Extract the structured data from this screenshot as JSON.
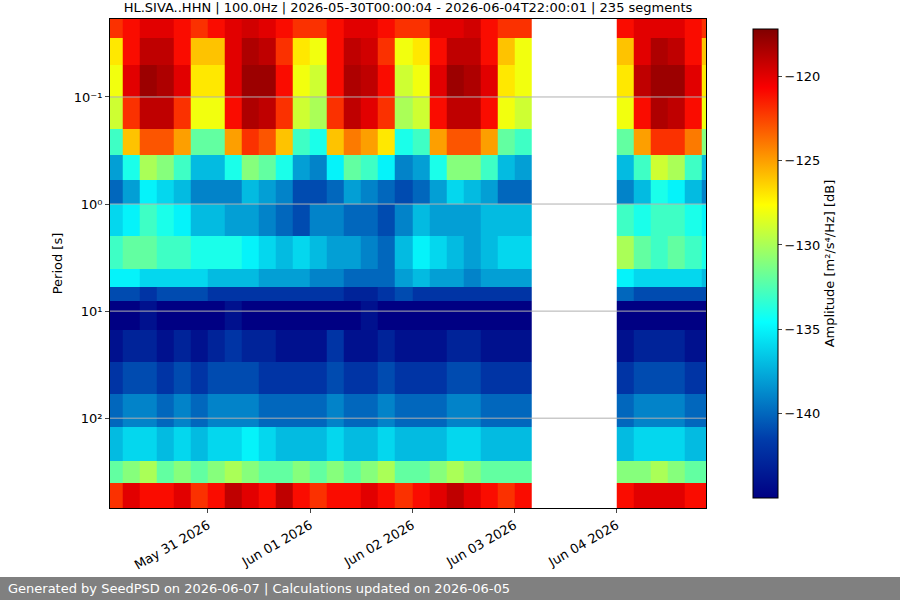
{
  "chart_data": {
    "type": "heatmap",
    "title": "HL.SIVA..HHN | 100.0Hz | 2026-05-30T00:00:04 - 2026-06-04T22:00:01 | 235 segments",
    "footer": "Generated by SeedPSD on 2026-06-07 | Calculations updated on 2026-06-05",
    "ylabel": "Period [s]",
    "colorbar_label": "Amplitude [m²/s⁴/Hz] [dB]",
    "log": "y",
    "grid": true,
    "xlim": [
      "2026-05-30 01:00",
      "2026-06-04 21:00"
    ],
    "xticks": [
      {
        "value": "2026-05-31",
        "label": "May 31 2026"
      },
      {
        "value": "2026-06-01",
        "label": "Jun 01 2026"
      },
      {
        "value": "2026-06-02",
        "label": "Jun 02 2026"
      },
      {
        "value": "2026-06-03",
        "label": "Jun 03 2026"
      },
      {
        "value": "2026-06-04",
        "label": "Jun 04 2026"
      }
    ],
    "ylim": [
      0.0187,
      690
    ],
    "yticks": [
      {
        "value": 0.1,
        "label": "10⁻¹"
      },
      {
        "value": 1,
        "label": "10⁰"
      },
      {
        "value": 10,
        "label": "10¹"
      },
      {
        "value": 100,
        "label": "10²"
      }
    ],
    "zlim": [
      -145,
      -117.2
    ],
    "zticks": [
      -140,
      -135,
      -130,
      -125,
      -120
    ],
    "x_edges": [
      "2026-05-30 00:00",
      "2026-05-30 04:00",
      "2026-05-30 08:00",
      "2026-05-30 12:00",
      "2026-05-30 16:00",
      "2026-05-30 20:00",
      "2026-05-31 00:00",
      "2026-05-31 04:00",
      "2026-05-31 08:00",
      "2026-05-31 12:00",
      "2026-05-31 16:00",
      "2026-05-31 20:00",
      "2026-06-01 00:00",
      "2026-06-01 04:00",
      "2026-06-01 08:00",
      "2026-06-01 12:00",
      "2026-06-01 16:00",
      "2026-06-01 20:00",
      "2026-06-02 00:00",
      "2026-06-02 04:00",
      "2026-06-02 08:00",
      "2026-06-02 12:00",
      "2026-06-02 16:00",
      "2026-06-02 20:00",
      "2026-06-03 00:00",
      "2026-06-03 04:00",
      "2026-06-03 08:00",
      "2026-06-03 12:00",
      "2026-06-03 16:00",
      "2026-06-03 20:00",
      "2026-06-04 00:00",
      "2026-06-04 04:00",
      "2026-06-04 08:00",
      "2026-06-04 12:00",
      "2026-06-04 16:00",
      "2026-06-04 20:00",
      "2026-06-05 00:00"
    ],
    "y_edges": [
      0.0187,
      0.028,
      0.05,
      0.1,
      0.2,
      0.35,
      0.6,
      1,
      2,
      4,
      6,
      8,
      15,
      30,
      60,
      120,
      250,
      400,
      690
    ],
    "z": [
      [
        -122,
        -121,
        -120,
        -120,
        -121,
        -122,
        -121,
        -120,
        -119.5,
        -120,
        -121,
        -122,
        -122,
        -121,
        -120,
        -120,
        -121,
        -122,
        -122,
        -120,
        -120,
        -119.5,
        -121,
        -122,
        -122,
        null,
        null,
        null,
        null,
        null,
        -121,
        -120,
        -120,
        -120,
        -121,
        -122
      ],
      [
        -127,
        -121,
        -119,
        -119,
        -121,
        -126,
        -126,
        -120,
        -118.5,
        -119,
        -122,
        -127,
        -128,
        -121,
        -119,
        -119.5,
        -122,
        -128,
        -127,
        -121,
        -119,
        -119,
        -121,
        -126,
        -128,
        null,
        null,
        null,
        null,
        null,
        -126,
        -120,
        -118.5,
        -119,
        -121,
        -126
      ],
      [
        -128,
        -120,
        -118,
        -118.5,
        -120,
        -127,
        -127,
        -120,
        -118,
        -118,
        -121,
        -128,
        -129,
        -121,
        -118.5,
        -119,
        -121,
        -129,
        -128,
        -120,
        -118,
        -118.5,
        -120,
        -127,
        -128,
        null,
        null,
        null,
        null,
        null,
        -127,
        -119,
        -118,
        -118,
        -120,
        -127
      ],
      [
        -129,
        -122,
        -119,
        -119,
        -122,
        -128,
        -128,
        -121,
        -118.5,
        -119,
        -122,
        -129,
        -130,
        -122,
        -119,
        -120,
        -122,
        -130,
        -129,
        -121,
        -119,
        -119,
        -121,
        -128,
        -129,
        null,
        null,
        null,
        null,
        null,
        -128,
        -121,
        -118.5,
        -119,
        -121,
        -128
      ],
      [
        -133,
        -126,
        -123,
        -123,
        -125,
        -132,
        -132,
        -125,
        -122,
        -123,
        -126,
        -133,
        -134,
        -126,
        -124,
        -125,
        -127,
        -134,
        -133,
        -125,
        -123,
        -123,
        -125,
        -132,
        -133,
        null,
        null,
        null,
        null,
        null,
        -132,
        -125,
        -122,
        -122,
        -124,
        -131
      ],
      [
        -138,
        -134,
        -130,
        -131,
        -133,
        -137,
        -137,
        -134,
        -131,
        -132,
        -134,
        -138,
        -139,
        -135,
        -132,
        -133,
        -135,
        -139,
        -138,
        -134,
        -131,
        -131,
        -133,
        -137,
        -138,
        null,
        null,
        null,
        null,
        null,
        -137,
        -133,
        -129,
        -130,
        -133,
        -137
      ],
      [
        -140,
        -138,
        -135,
        -136,
        -137,
        -139,
        -139,
        -139,
        -137,
        -138,
        -139,
        -141,
        -141,
        -140,
        -138,
        -139,
        -140,
        -141,
        -140,
        -138,
        -136,
        -137,
        -138,
        -140,
        -140,
        null,
        null,
        null,
        null,
        null,
        -139,
        -137,
        -134,
        -135,
        -137,
        -139
      ],
      [
        -136,
        -135,
        -133,
        -134,
        -135,
        -137,
        -137,
        -138,
        -138,
        -139,
        -140,
        -141,
        -139,
        -139,
        -140,
        -140,
        -141,
        -139,
        -137,
        -138,
        -138,
        -138,
        -137,
        -137,
        -137,
        null,
        null,
        null,
        null,
        null,
        -133,
        -134,
        -133,
        -133,
        -134,
        -135
      ],
      [
        -133,
        -132,
        -132,
        -133,
        -133,
        -134,
        -134,
        -134,
        -135,
        -136,
        -137,
        -136,
        -137,
        -138,
        -138,
        -139,
        -140,
        -137,
        -135,
        -136,
        -137,
        -138,
        -137,
        -136,
        -136,
        null,
        null,
        null,
        null,
        null,
        -130,
        -132,
        -133,
        -132,
        -133,
        -134
      ],
      [
        -135,
        -135,
        -136,
        -136,
        -136,
        -136,
        -137,
        -137,
        -137,
        -138,
        -138,
        -138,
        -139,
        -139,
        -140,
        -140,
        -140,
        -138,
        -137,
        -138,
        -138,
        -139,
        -138,
        -138,
        -138,
        null,
        null,
        null,
        null,
        null,
        -135,
        -136,
        -136,
        -136,
        -136,
        -137
      ],
      [
        -141,
        -141,
        -142,
        -141,
        -141,
        -141,
        -142,
        -142,
        -142,
        -142,
        -142,
        -142,
        -142,
        -142,
        -143,
        -143,
        -142,
        -141,
        -142,
        -142,
        -142,
        -142,
        -142,
        -142,
        -142,
        null,
        null,
        null,
        null,
        null,
        -140,
        -141,
        -141,
        -141,
        -141,
        -141
      ],
      [
        -145,
        -145,
        -144,
        -145,
        -145,
        -145,
        -145,
        -144,
        -145,
        -145,
        -145,
        -145,
        -145,
        -145,
        -145,
        -144,
        -145,
        -145,
        -145,
        -145,
        -145,
        -145,
        -145,
        -145,
        -145,
        null,
        null,
        null,
        null,
        null,
        -145,
        -145,
        -145,
        -145,
        -145,
        -145
      ],
      [
        -144,
        -143,
        -143,
        -144,
        -143,
        -144,
        -143,
        -142,
        -143,
        -143,
        -144,
        -144,
        -144,
        -142,
        -144,
        -144,
        -143,
        -144,
        -144,
        -144,
        -143,
        -143,
        -144,
        -144,
        -144,
        null,
        null,
        null,
        null,
        null,
        -144,
        -143,
        -143,
        -143,
        -144,
        -144
      ],
      [
        -142,
        -141,
        -141,
        -142,
        -141,
        -142,
        -141,
        -141,
        -141,
        -142,
        -142,
        -142,
        -142,
        -141,
        -142,
        -142,
        -141,
        -142,
        -142,
        -142,
        -141,
        -141,
        -142,
        -142,
        -142,
        null,
        null,
        null,
        null,
        null,
        -142,
        -141,
        -141,
        -141,
        -142,
        -142
      ],
      [
        -140,
        -139,
        -139,
        -140,
        -139,
        -140,
        -139,
        -139,
        -139,
        -140,
        -140,
        -140,
        -140,
        -139,
        -140,
        -140,
        -139,
        -140,
        -140,
        -140,
        -139,
        -139,
        -140,
        -140,
        -140,
        null,
        null,
        null,
        null,
        null,
        -140,
        -139,
        -139,
        -139,
        -140,
        -140
      ],
      [
        -137,
        -136,
        -136,
        -137,
        -136,
        -137,
        -136,
        -136,
        -135,
        -136,
        -137,
        -137,
        -137,
        -136,
        -137,
        -137,
        -136,
        -137,
        -137,
        -137,
        -136,
        -136,
        -137,
        -137,
        -137,
        null,
        null,
        null,
        null,
        null,
        -137,
        -136,
        -136,
        -136,
        -137,
        -137
      ],
      [
        -132,
        -131,
        -130,
        -132,
        -131,
        -132,
        -131,
        -130,
        -131,
        -132,
        -132,
        -131,
        -132,
        -131,
        -132,
        -131,
        -130,
        -132,
        -132,
        -131,
        -130,
        -131,
        -132,
        -132,
        -132,
        null,
        null,
        null,
        null,
        null,
        -131,
        -131,
        -130,
        -131,
        -132,
        -132
      ],
      [
        -122,
        -120,
        -121,
        -121,
        -120,
        -122,
        -121,
        -119,
        -120,
        -121,
        -119,
        -121,
        -122,
        -121,
        -121,
        -120,
        -121,
        -122,
        -121,
        -120,
        -119,
        -120,
        -121,
        -122,
        -121,
        null,
        null,
        null,
        null,
        null,
        -121,
        -120,
        -120,
        -120,
        -121,
        -121
      ]
    ]
  }
}
